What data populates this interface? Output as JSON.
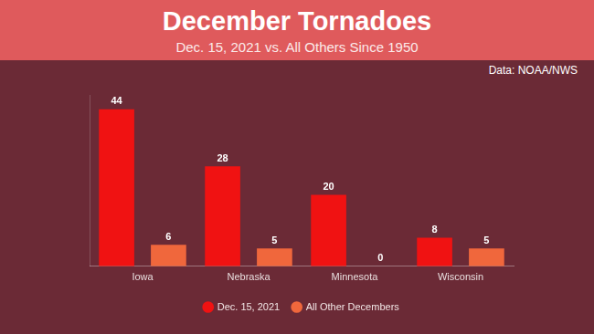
{
  "chart_data": {
    "type": "bar",
    "title": "December Tornadoes",
    "subtitle": "Dec. 15, 2021 vs. All Others Since 1950",
    "annotation": "Data: NOAA/NWS",
    "categories": [
      "Iowa",
      "Nebraska",
      "Minnesota",
      "Wisconsin"
    ],
    "series": [
      {
        "name": "Dec. 15, 2021",
        "color": "#f01212",
        "values": [
          44,
          28,
          20,
          8
        ]
      },
      {
        "name": "All Other Decembers",
        "color": "#f0673c",
        "values": [
          6,
          5,
          0,
          5
        ]
      }
    ],
    "ylim": [
      0,
      48
    ],
    "grid": false,
    "legend": "bottom",
    "data_labels": true,
    "tick_labels": "x"
  }
}
